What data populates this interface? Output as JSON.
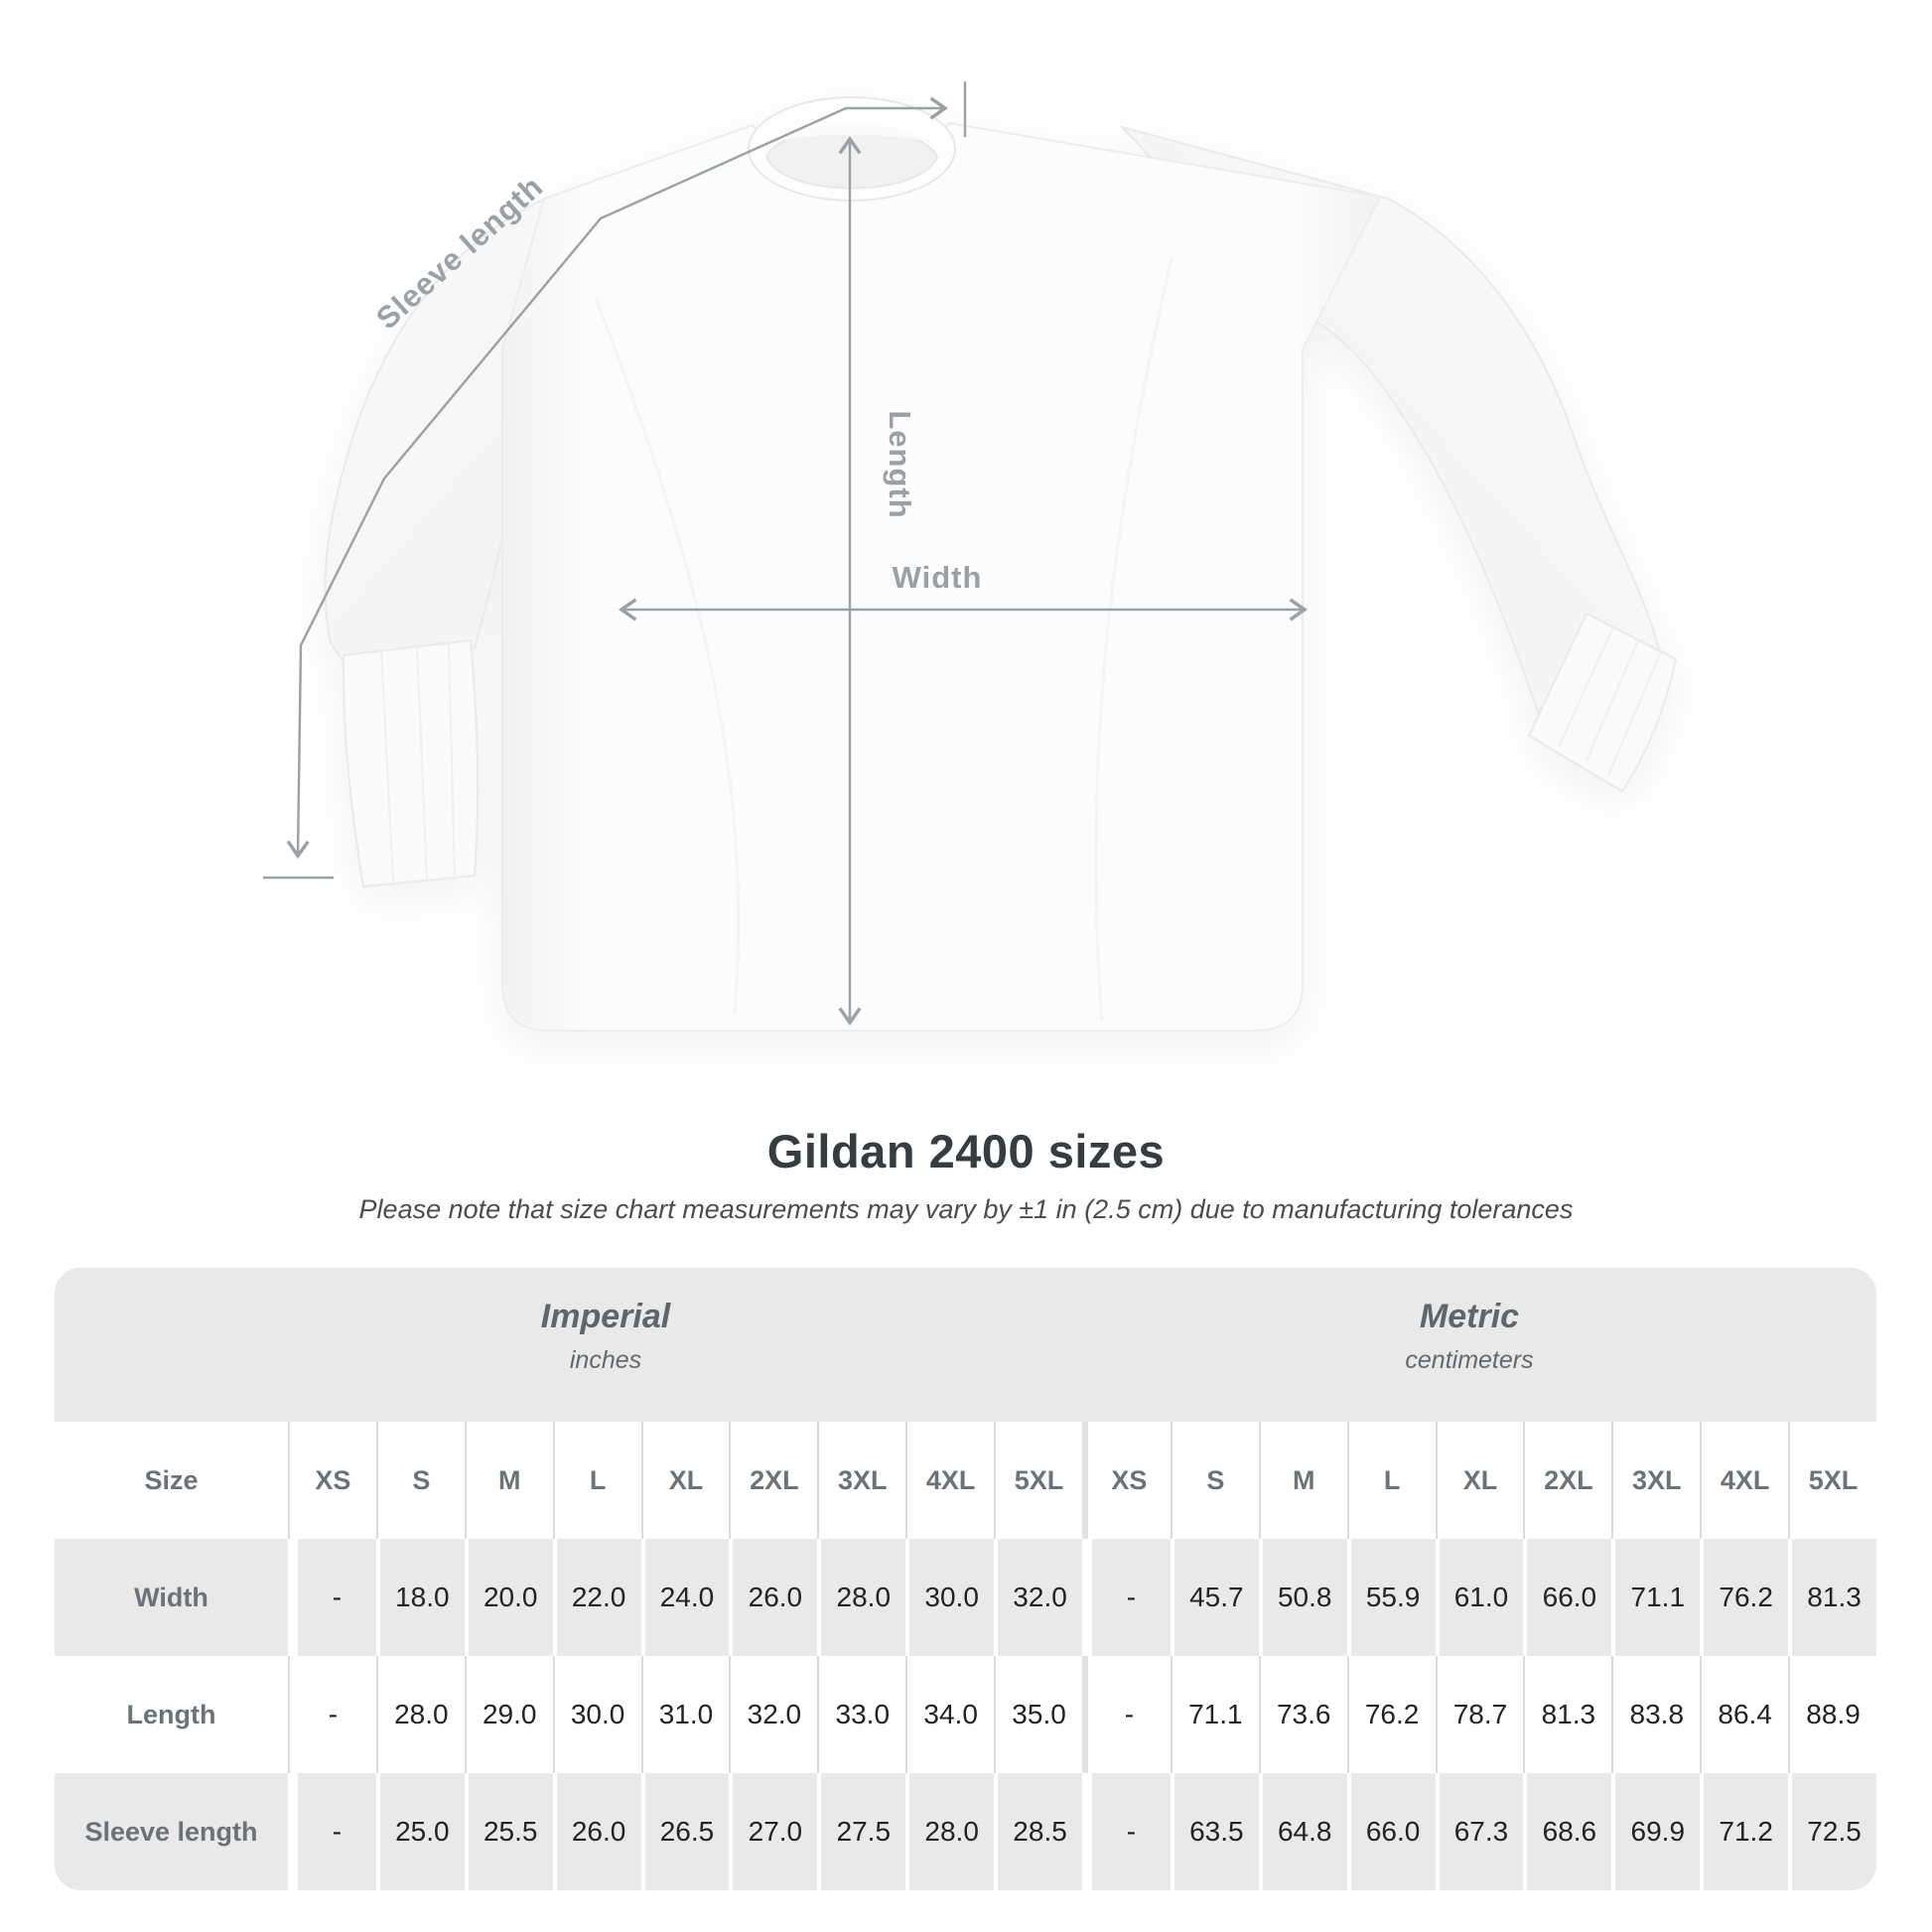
{
  "diagram": {
    "labels": {
      "sleeve_length": "Sleeve length",
      "length": "Length",
      "width": "Width"
    },
    "annotation_color": "#9aa0a4",
    "shirt_color": "#fcfcfc"
  },
  "heading": {
    "title": "Gildan 2400 sizes",
    "subtitle": "Please note that size chart measurements may vary by ±1 in (2.5 cm) due to manufacturing tolerances"
  },
  "table": {
    "unit_groups": [
      {
        "name": "Imperial",
        "unit": "inches"
      },
      {
        "name": "Metric",
        "unit": "centimeters"
      }
    ],
    "size_label": "Size",
    "sizes": [
      "XS",
      "S",
      "M",
      "L",
      "XL",
      "2XL",
      "3XL",
      "4XL",
      "5XL"
    ],
    "rows": [
      {
        "label": "Width",
        "imperial": [
          "-",
          "18.0",
          "20.0",
          "22.0",
          "24.0",
          "26.0",
          "28.0",
          "30.0",
          "32.0"
        ],
        "metric": [
          "-",
          "45.7",
          "50.8",
          "55.9",
          "61.0",
          "66.0",
          "71.1",
          "76.2",
          "81.3"
        ]
      },
      {
        "label": "Length",
        "imperial": [
          "-",
          "28.0",
          "29.0",
          "30.0",
          "31.0",
          "32.0",
          "33.0",
          "34.0",
          "35.0"
        ],
        "metric": [
          "-",
          "71.1",
          "73.6",
          "76.2",
          "78.7",
          "81.3",
          "83.8",
          "86.4",
          "88.9"
        ]
      },
      {
        "label": "Sleeve length",
        "imperial": [
          "-",
          "25.0",
          "25.5",
          "26.0",
          "26.5",
          "27.0",
          "27.5",
          "28.0",
          "28.5"
        ],
        "metric": [
          "-",
          "63.5",
          "64.8",
          "66.0",
          "67.3",
          "68.6",
          "69.9",
          "71.2",
          "72.5"
        ]
      }
    ],
    "colors": {
      "band_background": "#e9e9e9",
      "alt_row_background": "#e9e9e9",
      "header_text": "#6b7378",
      "value_text": "#232323"
    }
  },
  "chart_data": {
    "type": "table",
    "title": "Gildan 2400 sizes",
    "columns": [
      "Size",
      "XS",
      "S",
      "M",
      "L",
      "XL",
      "2XL",
      "3XL",
      "4XL",
      "5XL"
    ],
    "units": {
      "imperial": "inches",
      "metric": "centimeters"
    },
    "rows_imperial": [
      [
        "Width",
        null,
        18.0,
        20.0,
        22.0,
        24.0,
        26.0,
        28.0,
        30.0,
        32.0
      ],
      [
        "Length",
        null,
        28.0,
        29.0,
        30.0,
        31.0,
        32.0,
        33.0,
        34.0,
        35.0
      ],
      [
        "Sleeve length",
        null,
        25.0,
        25.5,
        26.0,
        26.5,
        27.0,
        27.5,
        28.0,
        28.5
      ]
    ],
    "rows_metric": [
      [
        "Width",
        null,
        45.7,
        50.8,
        55.9,
        61.0,
        66.0,
        71.1,
        76.2,
        81.3
      ],
      [
        "Length",
        null,
        71.1,
        73.6,
        76.2,
        78.7,
        81.3,
        83.8,
        86.4,
        88.9
      ],
      [
        "Sleeve length",
        null,
        63.5,
        64.8,
        66.0,
        67.3,
        68.6,
        69.9,
        71.2,
        72.5
      ]
    ]
  }
}
